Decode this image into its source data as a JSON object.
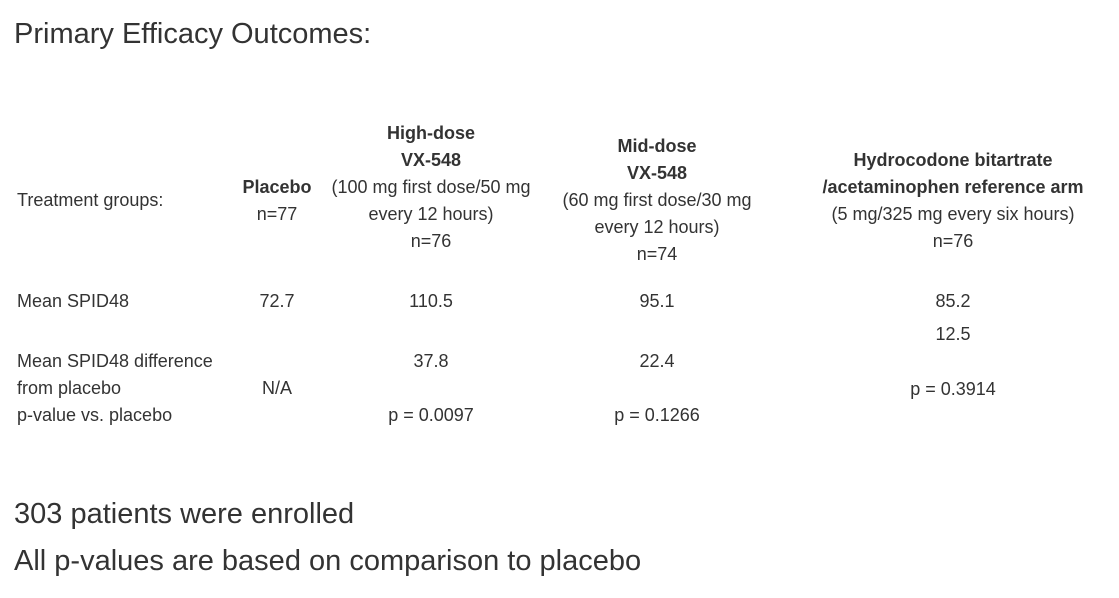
{
  "title": "Primary Efficacy Outcomes:",
  "row_labels": {
    "treatment_groups": "Treatment groups:",
    "mean_spid48": "Mean SPID48",
    "difference_line1": "Mean SPID48 difference",
    "difference_line2": "from placebo",
    "pvalue": "p-value vs. placebo"
  },
  "columns": [
    {
      "name_line1": "Placebo",
      "name_line2": "",
      "dose_line1": "",
      "dose_line2": "",
      "n": "n=77",
      "mean_spid48": "72.7",
      "difference": "",
      "pvalue": "",
      "na": "N/A"
    },
    {
      "name_line1": "High-dose",
      "name_line2": "VX-548",
      "dose_line1": "(100 mg first dose/50 mg",
      "dose_line2": "every 12 hours)",
      "n": "n=76",
      "mean_spid48": "110.5",
      "difference": "37.8",
      "pvalue": "p = 0.0097",
      "na": ""
    },
    {
      "name_line1": "Mid-dose",
      "name_line2": "VX-548",
      "dose_line1": "(60 mg first dose/30 mg",
      "dose_line2": "every 12 hours)",
      "n": "n=74",
      "mean_spid48": "95.1",
      "difference": "22.4",
      "pvalue": "p = 0.1266",
      "na": ""
    },
    {
      "name_line1": "Hydrocodone bitartrate",
      "name_line2": "/acetaminophen reference arm",
      "dose_line1": "(5 mg/325 mg every six hours)",
      "dose_line2": "",
      "n": "n=76",
      "mean_spid48": "85.2",
      "difference": "12.5",
      "pvalue": "p = 0.3914",
      "na": ""
    }
  ],
  "footer": {
    "line1": "303 patients were enrolled",
    "line2": "All p-values are based on comparison to placebo"
  }
}
